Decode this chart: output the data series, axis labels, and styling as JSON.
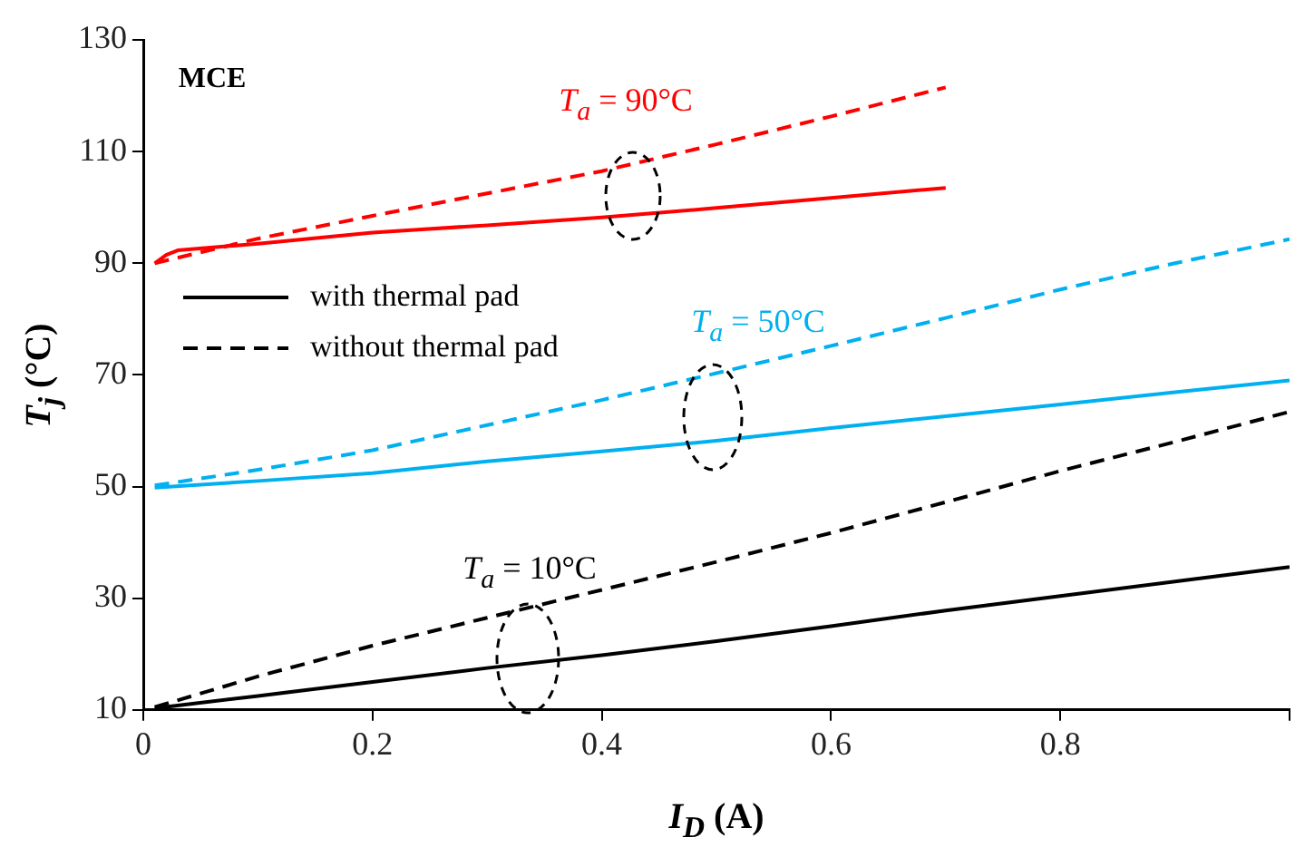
{
  "chart_data": {
    "type": "line",
    "xlabel": "I$_{D}$ (A)",
    "ylabel": "T$_{j}$ (°C)",
    "xlim": [
      0,
      1
    ],
    "xticks": [
      0,
      0.2,
      0.4,
      0.6,
      0.8,
      {
        "value": 1,
        "label": null
      }
    ],
    "ylim": [
      10,
      130
    ],
    "yticks": [
      10,
      30,
      50,
      70,
      90,
      110,
      130
    ],
    "grid": false,
    "legend": "left",
    "marker": "none",
    "annotations": [
      "MCE",
      "T$_{a}$ = 90°C",
      "T$_{a}$ = 50°C",
      "T$_{a}$ = 10°C"
    ],
    "series": [
      {
        "color": "#ff0000",
        "line_style": "solid",
        "x": [
          0.01,
          0.02,
          0.03,
          0.1,
          0.2,
          0.3,
          0.4,
          0.5,
          0.6,
          0.7
        ],
        "values": [
          90,
          91.5,
          92.3,
          93.5,
          95.5,
          96.8,
          98.2,
          99.9,
          101.7,
          103.5
        ]
      },
      {
        "color": "#ff0000",
        "line_style": "dashed",
        "x": [
          0.01,
          0.1,
          0.2,
          0.3,
          0.4,
          0.5,
          0.6,
          0.7
        ],
        "values": [
          90,
          94.4,
          98.5,
          102.5,
          106.5,
          111.3,
          116.3,
          121.5
        ]
      },
      {
        "color": "#00b0f0",
        "line_style": "solid",
        "x": [
          0.01,
          0.1,
          0.2,
          0.3,
          0.4,
          0.5,
          0.6,
          0.7,
          0.8,
          0.9,
          1
        ],
        "values": [
          49.8,
          51,
          52.4,
          54.5,
          56.3,
          58.2,
          60.5,
          62.6,
          64.7,
          66.9,
          69
        ]
      },
      {
        "color": "#00b0f0",
        "line_style": "dashed",
        "x": [
          0.01,
          0.1,
          0.2,
          0.3,
          0.4,
          0.5,
          0.6,
          0.7,
          0.8,
          0.9,
          1
        ],
        "values": [
          50.2,
          53,
          56.5,
          61,
          65.5,
          70.3,
          75.2,
          80.2,
          85.3,
          90,
          94.3
        ]
      },
      {
        "name": "with thermal pad",
        "color": "#000000",
        "line_style": "solid",
        "x": [
          0.01,
          0.1,
          0.2,
          0.3,
          0.4,
          0.5,
          0.6,
          0.7,
          0.8,
          0.9,
          1
        ],
        "values": [
          10.3,
          12.5,
          15,
          17.5,
          19.8,
          22.3,
          25,
          27.8,
          30.4,
          33,
          35.6
        ]
      },
      {
        "name": "without thermal pad",
        "color": "#000000",
        "line_style": "dashed",
        "x": [
          0.01,
          0.1,
          0.2,
          0.3,
          0.4,
          0.5,
          0.6,
          0.7,
          0.8,
          0.9,
          1
        ],
        "values": [
          10.5,
          16,
          21.5,
          26.5,
          31.5,
          36.5,
          41.7,
          47.2,
          52.8,
          58,
          63.4
        ]
      }
    ]
  }
}
